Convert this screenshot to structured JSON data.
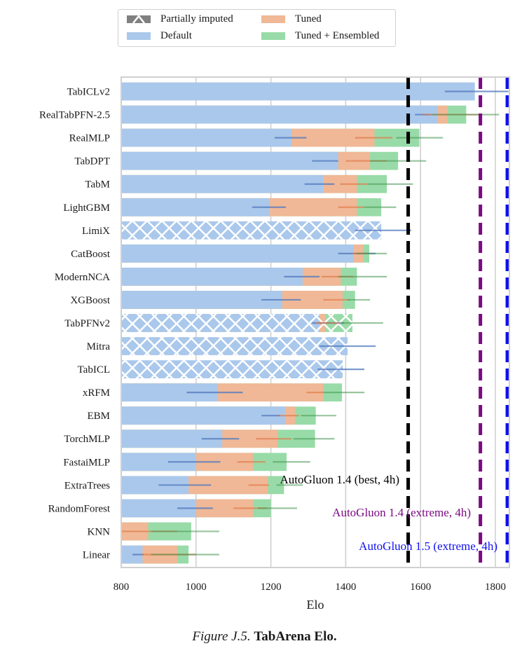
{
  "chart_data": {
    "type": "bar",
    "orientation": "horizontal",
    "title": "",
    "xlabel": "Elo",
    "ylabel": "",
    "xlim": [
      800,
      1837
    ],
    "xticks": [
      800,
      1000,
      1200,
      1400,
      1600,
      1800
    ],
    "grid": true,
    "legend_position": "top-center",
    "legend": [
      {
        "label": "Partially imputed",
        "key": "imputed",
        "color": "#808080"
      },
      {
        "label": "Tuned",
        "key": "tuned",
        "color": "#f0b896"
      },
      {
        "label": "Default",
        "key": "default",
        "color": "#aac8eb"
      },
      {
        "label": "Tuned + Ensembled",
        "key": "ensembled",
        "color": "#98dba8"
      }
    ],
    "categories": [
      "TabICLv2",
      "RealTabPFN-2.5",
      "RealMLP",
      "TabDPT",
      "TabM",
      "LightGBM",
      "LimiX",
      "CatBoost",
      "ModernNCA",
      "XGBoost",
      "TabPFNv2",
      "Mitra",
      "TabICL",
      "xRFM",
      "EBM",
      "TorchMLP",
      "FastaiMLP",
      "ExtraTrees",
      "RandomForest",
      "KNN",
      "Linear"
    ],
    "imputed": [
      false,
      false,
      false,
      false,
      false,
      false,
      true,
      false,
      false,
      false,
      true,
      true,
      true,
      false,
      false,
      false,
      false,
      false,
      false,
      false,
      false
    ],
    "series": [
      {
        "name": "Default",
        "values": [
          1745,
          1645,
          1255,
          1380,
          1340,
          1195,
          1495,
          1420,
          1285,
          1230,
          1330,
          1405,
          1392,
          1058,
          1238,
          1070,
          1000,
          980,
          1000,
          780,
          857
        ],
        "ci_low": [
          1665,
          1585,
          1210,
          1310,
          1290,
          1150,
          1425,
          1380,
          1235,
          1175,
          1310,
          1330,
          1325,
          975,
          1175,
          1015,
          925,
          900,
          950,
          null,
          830
        ],
        "ci_high": [
          1835,
          1628,
          1295,
          1380,
          1370,
          1240,
          1575,
          1480,
          1330,
          1280,
          1395,
          1480,
          1450,
          1125,
          1225,
          1115,
          1065,
          1040,
          1045,
          null,
          860
        ]
      },
      {
        "name": "Tuned",
        "values": [
          null,
          1672,
          1477,
          1465,
          1430,
          1430,
          null,
          1447,
          1387,
          1392,
          1345,
          null,
          null,
          1340,
          1265,
          1218,
          1152,
          1192,
          1152,
          872,
          950
        ],
        "ci_low": [
          null,
          1605,
          1425,
          1400,
          1385,
          1380,
          null,
          1418,
          1335,
          1340,
          1320,
          null,
          null,
          1295,
          1220,
          1160,
          1110,
          1140,
          1100,
          800,
          855
        ],
        "ci_high": [
          null,
          1758,
          1525,
          1510,
          1460,
          1450,
          null,
          1460,
          1420,
          1410,
          1385,
          null,
          null,
          1340,
          1275,
          1255,
          1185,
          1195,
          1190,
          950,
          1000
        ]
      },
      {
        "name": "Tuned + Ensembled",
        "values": [
          null,
          1722,
          1597,
          1540,
          1510,
          1495,
          null,
          1463,
          1430,
          1425,
          1418,
          null,
          null,
          1390,
          1320,
          1318,
          1242,
          1235,
          1200,
          987,
          980
        ],
        "ci_low": [
          null,
          1630,
          1535,
          1465,
          1460,
          1450,
          null,
          1430,
          1380,
          1405,
          1390,
          null,
          null,
          1340,
          1280,
          1260,
          1205,
          1215,
          1165,
          880,
          880
        ],
        "ci_high": [
          null,
          1810,
          1660,
          1615,
          1580,
          1535,
          null,
          1510,
          1510,
          1465,
          1500,
          null,
          null,
          1450,
          1375,
          1370,
          1305,
          1285,
          1270,
          1062,
          1062
        ]
      }
    ],
    "reference_lines": [
      {
        "label": "AutoGluon 1.4 (best, 4h)",
        "value": 1567,
        "color": "#000000"
      },
      {
        "label": "AutoGluon 1.4 (extreme, 4h)",
        "value": 1760,
        "color": "#7b0a82"
      },
      {
        "label": "AutoGluon 1.5 (extreme, 4h)",
        "value": 1832,
        "color": "#1010ee"
      }
    ]
  },
  "caption": {
    "figure_label": "Figure J.5.",
    "title": "TabArena Elo."
  }
}
